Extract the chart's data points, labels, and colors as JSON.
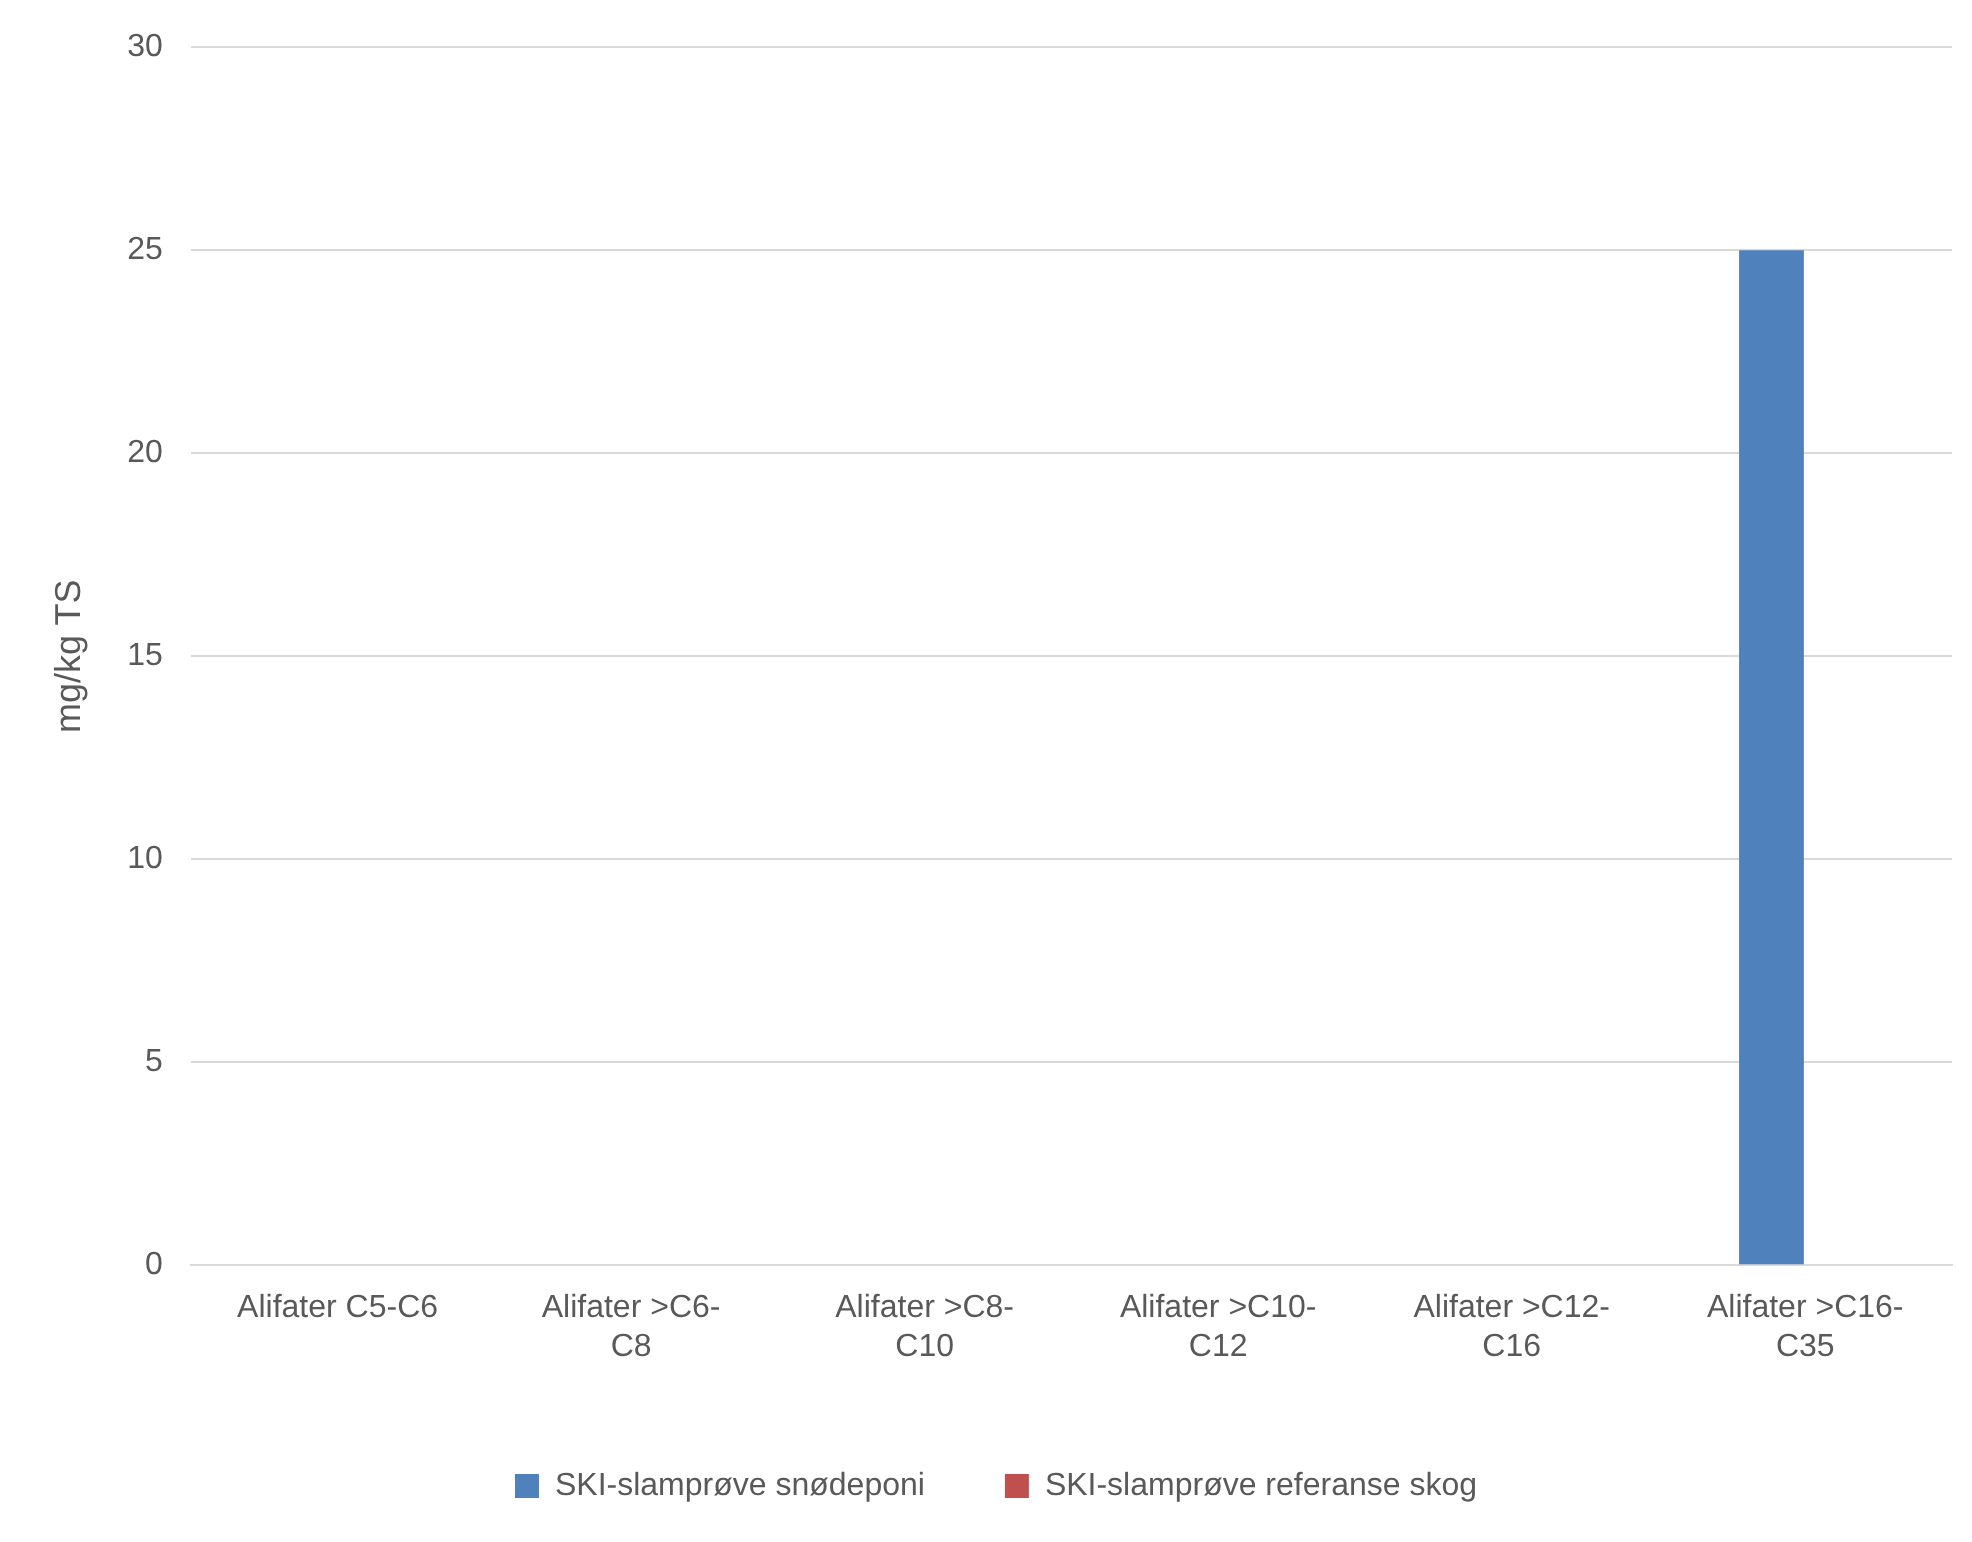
{
  "chart_data": {
    "type": "bar",
    "ylabel": "mg/kg TS",
    "categories": [
      "Alifater C5-C6",
      "Alifater >C6-C8",
      "Alifater >C8-C10",
      "Alifater >C10-C12",
      "Alifater >C12-C16",
      "Alifater >C16-C35"
    ],
    "series": [
      {
        "name": "SKI-slamprøve snødeponi",
        "color": "#4f81bd",
        "values": [
          null,
          null,
          null,
          null,
          null,
          25
        ]
      },
      {
        "name": "SKI-slamprøve referanse skog",
        "color": "#c0504d",
        "values": [
          null,
          null,
          null,
          null,
          null,
          null
        ]
      }
    ],
    "ylim": [
      0,
      30
    ],
    "yticks": [
      0,
      5,
      10,
      15,
      20,
      25,
      30
    ],
    "grid": "y",
    "legend": "bottom"
  }
}
